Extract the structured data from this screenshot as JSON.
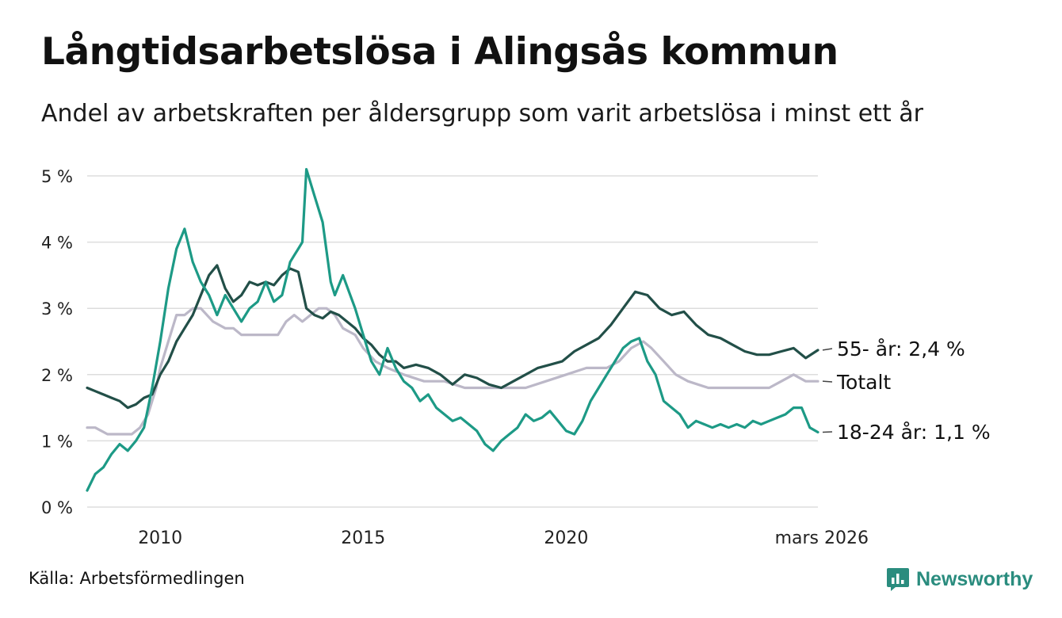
{
  "title": "Långtidsarbetslösa i Alingsås kommun",
  "subtitle": "Andel av arbetskraften per åldersgrupp som varit arbetslösa i minst ett år",
  "source": "Källa: Arbetsförmedlingen",
  "brand": "Newsworthy",
  "colors": {
    "series_55": "#224f48",
    "series_total": "#bcb8c8",
    "series_1824": "#1d9a86",
    "grid": "#dddddd",
    "brand": "#2a8c7e"
  },
  "chart_data": {
    "type": "line",
    "title": "Långtidsarbetslösa i Alingsås kommun",
    "subtitle": "Andel av arbetskraften per åldersgrupp som varit arbetslösa i minst ett år",
    "xlabel": "",
    "ylabel": "",
    "xlim": [
      2008.2,
      2026.2
    ],
    "ylim": [
      0,
      5
    ],
    "y_ticks": [
      0,
      1,
      2,
      3,
      4,
      5
    ],
    "y_tick_labels": [
      "0 %",
      "1 %",
      "2 %",
      "3 %",
      "4 %",
      "5 %"
    ],
    "x_ticks": [
      2010,
      2015,
      2020,
      2026.2
    ],
    "x_tick_labels": [
      "2010",
      "2015",
      "2020",
      "mars 2026"
    ],
    "grid": "horizontal",
    "legend": "end-of-line labels",
    "series": [
      {
        "name": "Totalt",
        "end_label": "Totalt",
        "x": [
          2008.2,
          2008.4,
          2008.7,
          2009.0,
          2009.3,
          2009.5,
          2009.7,
          2009.9,
          2010.0,
          2010.2,
          2010.4,
          2010.6,
          2010.8,
          2011.0,
          2011.3,
          2011.6,
          2011.8,
          2012.0,
          2012.3,
          2012.6,
          2012.9,
          2013.1,
          2013.3,
          2013.5,
          2013.7,
          2013.9,
          2014.1,
          2014.3,
          2014.5,
          2014.8,
          2015.0,
          2015.3,
          2015.6,
          2016.0,
          2016.5,
          2017.0,
          2017.5,
          2018.0,
          2018.5,
          2019.0,
          2019.5,
          2020.0,
          2020.5,
          2021.0,
          2021.3,
          2021.6,
          2021.9,
          2022.1,
          2022.4,
          2022.7,
          2023.0,
          2023.5,
          2024.0,
          2024.5,
          2025.0,
          2025.3,
          2025.6,
          2025.9,
          2026.2
        ],
        "values": [
          1.2,
          1.2,
          1.1,
          1.1,
          1.1,
          1.2,
          1.4,
          1.8,
          2.1,
          2.5,
          2.9,
          2.9,
          3.0,
          3.0,
          2.8,
          2.7,
          2.7,
          2.6,
          2.6,
          2.6,
          2.6,
          2.8,
          2.9,
          2.8,
          2.9,
          3.0,
          3.0,
          2.9,
          2.7,
          2.6,
          2.4,
          2.2,
          2.1,
          2.0,
          1.9,
          1.9,
          1.8,
          1.8,
          1.8,
          1.8,
          1.9,
          2.0,
          2.1,
          2.1,
          2.2,
          2.4,
          2.5,
          2.4,
          2.2,
          2.0,
          1.9,
          1.8,
          1.8,
          1.8,
          1.8,
          1.9,
          2.0,
          1.9,
          1.9
        ]
      },
      {
        "name": "55- år",
        "end_label": "55- år: 2,4 %",
        "x": [
          2008.2,
          2008.4,
          2008.6,
          2008.8,
          2009.0,
          2009.2,
          2009.4,
          2009.6,
          2009.8,
          2010.0,
          2010.2,
          2010.4,
          2010.6,
          2010.8,
          2011.0,
          2011.2,
          2011.4,
          2011.6,
          2011.8,
          2012.0,
          2012.2,
          2012.4,
          2012.6,
          2012.8,
          2013.0,
          2013.2,
          2013.4,
          2013.6,
          2013.8,
          2014.0,
          2014.2,
          2014.4,
          2014.6,
          2014.8,
          2015.0,
          2015.2,
          2015.4,
          2015.6,
          2015.8,
          2016.0,
          2016.3,
          2016.6,
          2016.9,
          2017.2,
          2017.5,
          2017.8,
          2018.1,
          2018.4,
          2018.7,
          2019.0,
          2019.3,
          2019.6,
          2019.9,
          2020.2,
          2020.5,
          2020.8,
          2021.1,
          2021.4,
          2021.7,
          2022.0,
          2022.3,
          2022.6,
          2022.9,
          2023.2,
          2023.5,
          2023.8,
          2024.1,
          2024.4,
          2024.7,
          2025.0,
          2025.3,
          2025.6,
          2025.9,
          2026.2
        ],
        "values": [
          1.8,
          1.75,
          1.7,
          1.65,
          1.6,
          1.5,
          1.55,
          1.65,
          1.7,
          2.0,
          2.2,
          2.5,
          2.7,
          2.9,
          3.2,
          3.5,
          3.65,
          3.3,
          3.1,
          3.2,
          3.4,
          3.35,
          3.4,
          3.35,
          3.5,
          3.6,
          3.55,
          3.0,
          2.9,
          2.85,
          2.95,
          2.9,
          2.8,
          2.7,
          2.55,
          2.45,
          2.3,
          2.2,
          2.2,
          2.1,
          2.15,
          2.1,
          2.0,
          1.85,
          2.0,
          1.95,
          1.85,
          1.8,
          1.9,
          2.0,
          2.1,
          2.15,
          2.2,
          2.35,
          2.45,
          2.55,
          2.75,
          3.0,
          3.25,
          3.2,
          3.0,
          2.9,
          2.95,
          2.75,
          2.6,
          2.55,
          2.45,
          2.35,
          2.3,
          2.3,
          2.35,
          2.4,
          2.25,
          2.37
        ]
      },
      {
        "name": "18-24 år",
        "end_label": "18-24 år: 1,1 %",
        "x": [
          2008.2,
          2008.4,
          2008.6,
          2008.8,
          2009.0,
          2009.2,
          2009.4,
          2009.6,
          2009.8,
          2010.0,
          2010.1,
          2010.2,
          2010.4,
          2010.6,
          2010.8,
          2011.0,
          2011.2,
          2011.4,
          2011.6,
          2011.8,
          2012.0,
          2012.2,
          2012.4,
          2012.6,
          2012.8,
          2013.0,
          2013.2,
          2013.3,
          2013.4,
          2013.5,
          2013.6,
          2013.8,
          2014.0,
          2014.2,
          2014.3,
          2014.5,
          2014.8,
          2015.0,
          2015.2,
          2015.4,
          2015.6,
          2015.8,
          2016.0,
          2016.2,
          2016.4,
          2016.6,
          2016.8,
          2017.0,
          2017.2,
          2017.4,
          2017.6,
          2017.8,
          2018.0,
          2018.2,
          2018.4,
          2018.6,
          2018.8,
          2019.0,
          2019.2,
          2019.4,
          2019.6,
          2019.8,
          2020.0,
          2020.2,
          2020.4,
          2020.6,
          2020.8,
          2021.0,
          2021.2,
          2021.4,
          2021.6,
          2021.8,
          2022.0,
          2022.2,
          2022.4,
          2022.6,
          2022.8,
          2023.0,
          2023.2,
          2023.4,
          2023.6,
          2023.8,
          2024.0,
          2024.2,
          2024.4,
          2024.6,
          2024.8,
          2025.0,
          2025.2,
          2025.4,
          2025.6,
          2025.8,
          2026.0,
          2026.2
        ],
        "values": [
          0.25,
          0.5,
          0.6,
          0.8,
          0.95,
          0.85,
          1.0,
          1.2,
          1.8,
          2.5,
          2.9,
          3.3,
          3.9,
          4.2,
          3.7,
          3.4,
          3.2,
          2.9,
          3.2,
          3.0,
          2.8,
          3.0,
          3.1,
          3.4,
          3.1,
          3.2,
          3.7,
          3.8,
          3.9,
          4.0,
          5.1,
          4.7,
          4.3,
          3.4,
          3.2,
          3.5,
          3.0,
          2.6,
          2.2,
          2.0,
          2.4,
          2.1,
          1.9,
          1.8,
          1.6,
          1.7,
          1.5,
          1.4,
          1.3,
          1.35,
          1.25,
          1.15,
          0.95,
          0.85,
          1.0,
          1.1,
          1.2,
          1.4,
          1.3,
          1.35,
          1.45,
          1.3,
          1.15,
          1.1,
          1.3,
          1.6,
          1.8,
          2.0,
          2.2,
          2.4,
          2.5,
          2.55,
          2.2,
          2.0,
          1.6,
          1.5,
          1.4,
          1.2,
          1.3,
          1.25,
          1.2,
          1.25,
          1.2,
          1.25,
          1.2,
          1.3,
          1.25,
          1.3,
          1.35,
          1.4,
          1.5,
          1.5,
          1.2,
          1.13
        ]
      }
    ]
  }
}
